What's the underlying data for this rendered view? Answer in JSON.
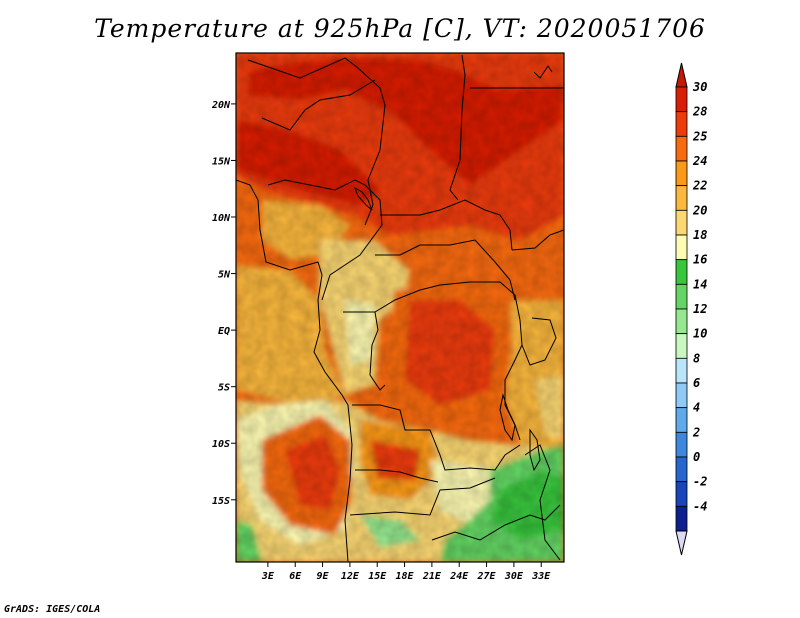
{
  "title": "Temperature at 925hPa [C], VT: 2020051706",
  "credit": "GrADS: IGES/COLA",
  "map": {
    "lon_range": [
      -0.5,
      35.5
    ],
    "lat_range": [
      -20.5,
      24.5
    ],
    "x_ticks": [
      {
        "value": 3,
        "label": "3E"
      },
      {
        "value": 6,
        "label": "6E"
      },
      {
        "value": 9,
        "label": "9E"
      },
      {
        "value": 12,
        "label": "12E"
      },
      {
        "value": 15,
        "label": "15E"
      },
      {
        "value": 18,
        "label": "18E"
      },
      {
        "value": 21,
        "label": "21E"
      },
      {
        "value": 24,
        "label": "24E"
      },
      {
        "value": 27,
        "label": "27E"
      },
      {
        "value": 30,
        "label": "30E"
      },
      {
        "value": 33,
        "label": "33E"
      }
    ],
    "y_ticks": [
      {
        "value": 20,
        "label": "20N"
      },
      {
        "value": 15,
        "label": "15N"
      },
      {
        "value": 10,
        "label": "10N"
      },
      {
        "value": 5,
        "label": "5N"
      },
      {
        "value": 0,
        "label": "EQ"
      },
      {
        "value": -5,
        "label": "5S"
      },
      {
        "value": -10,
        "label": "10S"
      },
      {
        "value": -15,
        "label": "15S"
      }
    ]
  },
  "colorbar": {
    "levels": [
      {
        "label": "30",
        "color": "#d81e05"
      },
      {
        "label": "28",
        "color": "#ed3b0a"
      },
      {
        "label": "25",
        "color": "#f86a10"
      },
      {
        "label": "24",
        "color": "#fb9a17"
      },
      {
        "label": "22",
        "color": "#fbb83c"
      },
      {
        "label": "20",
        "color": "#fcd873"
      },
      {
        "label": "18",
        "color": "#fefbb3"
      },
      {
        "label": "16",
        "color": "#37c63c"
      },
      {
        "label": "14",
        "color": "#64d564"
      },
      {
        "label": "12",
        "color": "#95e88f"
      },
      {
        "label": "10",
        "color": "#c9f7c0"
      },
      {
        "label": "8",
        "color": "#b9e5fb"
      },
      {
        "label": "6",
        "color": "#8fcaf6"
      },
      {
        "label": "4",
        "color": "#5faaeb"
      },
      {
        "label": "2",
        "color": "#3d88dd"
      },
      {
        "label": "0",
        "color": "#2766ce"
      },
      {
        "label": "-2",
        "color": "#1845ba"
      },
      {
        "label": "-4",
        "color": "#0d1f8f"
      }
    ],
    "top_color": "#c41a04",
    "bottom_color": "#dcd8f5"
  }
}
